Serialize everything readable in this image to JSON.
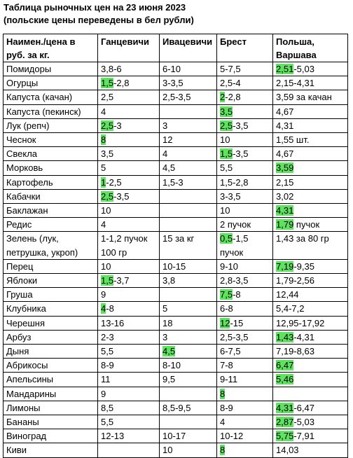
{
  "header": {
    "title": "Таблица рыночных цен на 23 июня 2023",
    "subtitle": "(польские цены переведены в бел рубли)"
  },
  "table": {
    "columns": [
      "Наимен./цена в руб. за кг.",
      "Ганцевичи",
      "Ивацевичи",
      "Брест",
      "Польша, Варшава"
    ],
    "rows": [
      [
        "Помидоры",
        "3,8-6",
        "6-10",
        "5-7,5",
        {
          "highlight": "2,51",
          "text": "-5,03"
        }
      ],
      [
        "Огурцы",
        {
          "highlight": "1,5",
          "text": "-2,8"
        },
        "3-3,5",
        "2,5-4",
        "2,15-4,31"
      ],
      [
        "Капуста (качан)",
        "2,5",
        "2,5-3,5",
        {
          "highlight": "2",
          "text": "-2,8"
        },
        "3,59 за качан"
      ],
      [
        "Капуста (пекинск)",
        "4",
        null,
        {
          "highlight": "3,5"
        },
        "4,67"
      ],
      [
        "Лук (репч)",
        {
          "highlight": "2,5",
          "text": "-3"
        },
        "3",
        {
          "highlight": "2,5",
          "text": "-3,5"
        },
        "4,31"
      ],
      [
        "Чеснок",
        {
          "highlight": "8"
        },
        "12",
        "10",
        "1,55 шт."
      ],
      [
        "Свекла",
        "3,5",
        "4",
        {
          "highlight": "1,5",
          "text": "-3,5"
        },
        "4,67"
      ],
      [
        "Морковь",
        "5",
        "4,5",
        "5,5",
        {
          "highlight": "3,59"
        }
      ],
      [
        "Картофель",
        {
          "highlight": "1",
          "text": "-2,5"
        },
        "1,5-3",
        "1,5-2,8",
        "2,15"
      ],
      [
        "Кабачки",
        {
          "highlight": "2,5",
          "text": "-3,5"
        },
        null,
        "3-3,5",
        "3,02"
      ],
      [
        "Баклажан",
        "10",
        null,
        "10",
        {
          "highlight": "4,31"
        }
      ],
      [
        "Редис",
        "4",
        null,
        "2 пучок",
        {
          "highlight": "1,79",
          "text": " пучок"
        }
      ],
      [
        "Зелень (лук, петрушка, укроп)",
        "1-1,2 пучок 100 гр",
        "15 за кг",
        {
          "highlight": "0,5",
          "text": "-1,5 пучок"
        },
        "1,43 за 80 гр"
      ],
      [
        "Перец",
        "10",
        "10-15",
        "9-10",
        {
          "highlight": "7,19",
          "text": "-9,35"
        }
      ],
      [
        "Яблоки",
        {
          "highlight": "1,5",
          "text": "-3,7"
        },
        "3,8",
        "2,8-3,5",
        "1,79-2,56"
      ],
      [
        "Груша",
        "9",
        null,
        {
          "highlight": "7,5",
          "text": "-8"
        },
        "12,44"
      ],
      [
        "Клубника",
        {
          "highlight": "4",
          "text": "-8"
        },
        "5",
        "6-8",
        "5,4-7,2"
      ],
      [
        "Черешня",
        "13-16",
        "18",
        {
          "highlight": "12",
          "text": "-15"
        },
        "12,95-17,92"
      ],
      [
        "Арбуз",
        "2-3",
        "3",
        "2,5-3,5",
        {
          "highlight": "1,43",
          "text": "-4,31"
        }
      ],
      [
        "Дыня",
        "5,5",
        {
          "highlight": "4,5"
        },
        "6-7,5",
        "7,19-8,63"
      ],
      [
        "Абрикосы",
        "8-9",
        "8-10",
        "7-8",
        {
          "highlight": "6,47"
        }
      ],
      [
        "Апельсины",
        "11",
        "9,5",
        "9-11",
        {
          "highlight": "5,46"
        }
      ],
      [
        "Мандарины",
        "9",
        null,
        {
          "highlight": "8"
        },
        null
      ],
      [
        "Лимоны",
        "8,5",
        "8,5-9,5",
        "8-9",
        {
          "highlight": "4,31",
          "text": "-6,47"
        }
      ],
      [
        "Бананы",
        "5,5",
        null,
        "4",
        {
          "highlight": "2,87",
          "text": "-5,03"
        }
      ],
      [
        "Виноград",
        "12-13",
        "10-17",
        "10-12",
        {
          "highlight": "5,75",
          "text": "-7,91"
        }
      ],
      [
        "Киви",
        null,
        "10",
        {
          "highlight": "8"
        },
        "14,03"
      ]
    ]
  }
}
